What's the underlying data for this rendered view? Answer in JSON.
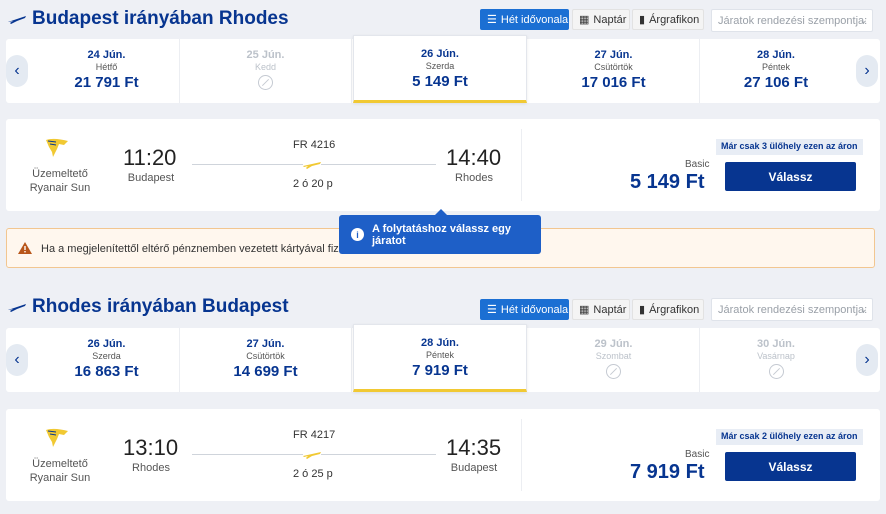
{
  "outbound": {
    "title": "Budapest irányában Rhodes",
    "view_timeline": "Hét idővonala",
    "view_calendar": "Naptár",
    "view_graph": "Árgrafikon",
    "sort_placeholder": "Járatok rendezési szempontja:",
    "dates": [
      {
        "date": "24 Jún.",
        "weekday": "Hétfő",
        "price": "21 791 Ft",
        "available": true,
        "selected": false
      },
      {
        "date": "25 Jún.",
        "weekday": "Kedd",
        "price": "",
        "available": false,
        "selected": false
      },
      {
        "date": "26 Jún.",
        "weekday": "Szerda",
        "price": "5 149 Ft",
        "available": true,
        "selected": true
      },
      {
        "date": "27 Jún.",
        "weekday": "Csütörtök",
        "price": "17 016 Ft",
        "available": true,
        "selected": false
      },
      {
        "date": "28 Jún.",
        "weekday": "Péntek",
        "price": "27 106 Ft",
        "available": true,
        "selected": false
      }
    ],
    "flight": {
      "operator_label": "Üzemeltető",
      "operator_name": "Ryanair Sun",
      "dep_time": "11:20",
      "dep_city": "Budapest",
      "flight_no": "FR 4216",
      "duration": "2 ó 20 p",
      "arr_time": "14:40",
      "arr_city": "Rhodes",
      "seats_left": "Már csak 3 ülőhely ezen az áron",
      "fare_type": "Basic",
      "price": "5 149 Ft",
      "select_label": "Válassz"
    }
  },
  "warning_text": "Ha a megjelenítettől eltérő pénznemben vezetett kártyával fizet, a",
  "tooltip_text": "A folytatáshoz válassz egy járatot",
  "return": {
    "title": "Rhodes irányában Budapest",
    "view_timeline": "Hét idővonala",
    "view_calendar": "Naptár",
    "view_graph": "Árgrafikon",
    "sort_placeholder": "Járatok rendezési szempontja:",
    "dates": [
      {
        "date": "26 Jún.",
        "weekday": "Szerda",
        "price": "16 863 Ft",
        "available": true,
        "selected": false
      },
      {
        "date": "27 Jún.",
        "weekday": "Csütörtök",
        "price": "14 699 Ft",
        "available": true,
        "selected": false
      },
      {
        "date": "28 Jún.",
        "weekday": "Péntek",
        "price": "7 919 Ft",
        "available": true,
        "selected": true
      },
      {
        "date": "29 Jún.",
        "weekday": "Szombat",
        "price": "",
        "available": false,
        "selected": false
      },
      {
        "date": "30 Jún.",
        "weekday": "Vasárnap",
        "price": "",
        "available": false,
        "selected": false
      }
    ],
    "flight": {
      "operator_label": "Üzemeltető",
      "operator_name": "Ryanair Sun",
      "dep_time": "13:10",
      "dep_city": "Rhodes",
      "flight_no": "FR 4217",
      "duration": "2 ó 25 p",
      "arr_time": "14:35",
      "arr_city": "Budapest",
      "seats_left": "Már csak 2 ülőhely ezen az áron",
      "fare_type": "Basic",
      "price": "7 919 Ft",
      "select_label": "Válassz"
    }
  },
  "colors": {
    "brand": "#073590",
    "accent": "#f1c933",
    "active": "#1b6fd3",
    "tooltip": "#1e5fc7"
  },
  "icons": [
    "plane-icon",
    "calendar-icon",
    "bar-chart-icon",
    "chevron-left-icon",
    "chevron-right-icon",
    "no-flight-icon",
    "ryanair-harp-icon",
    "warning-icon",
    "info-icon"
  ]
}
